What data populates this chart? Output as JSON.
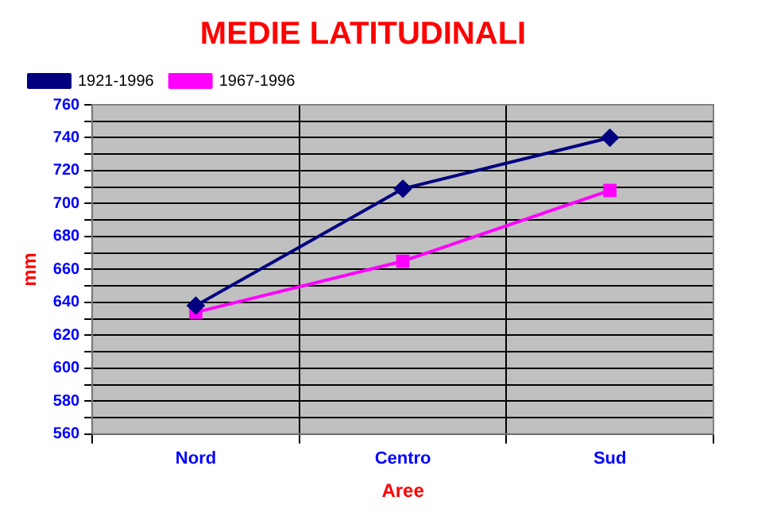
{
  "chart_data": {
    "type": "line",
    "title": "MEDIE LATITUDINALI",
    "xlabel": "Aree",
    "ylabel": "mm",
    "categories": [
      "Nord",
      "Centro",
      "Sud"
    ],
    "series": [
      {
        "name": "1921-1996",
        "color": "#000080",
        "marker": "diamond",
        "values": [
          638,
          709,
          740
        ]
      },
      {
        "name": "1967-1996",
        "color": "#ff00ff",
        "marker": "square",
        "values": [
          634,
          665,
          708
        ]
      }
    ],
    "ylim": [
      560,
      760
    ],
    "yticks": [
      560,
      {
        "value": 570,
        "label": null
      },
      580,
      {
        "value": 590,
        "label": null
      },
      600,
      {
        "value": 610,
        "label": null
      },
      620,
      {
        "value": 630,
        "label": null
      },
      640,
      {
        "value": 650,
        "label": null
      },
      660,
      {
        "value": 670,
        "label": null
      },
      680,
      {
        "value": 690,
        "label": null
      },
      700,
      {
        "value": 710,
        "label": null
      },
      720,
      {
        "value": 730,
        "label": null
      },
      740,
      {
        "value": 750,
        "label": null
      },
      760
    ],
    "grid": true,
    "legend": "top left"
  }
}
